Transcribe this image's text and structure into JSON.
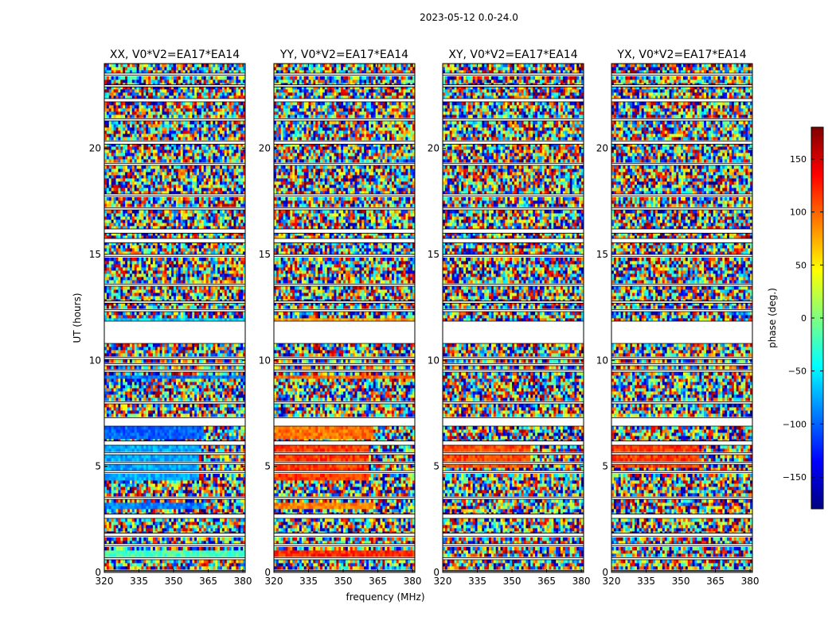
{
  "figure_title": "2023-05-12 0.0-24.0",
  "colors": {
    "background": "#ffffff",
    "axis": "#000000",
    "colormap": [
      "#00007f",
      "#0000ff",
      "#007fff",
      "#00ffff",
      "#7fff7f",
      "#ffff00",
      "#ff7f00",
      "#ff0000",
      "#7f0000"
    ]
  },
  "chart_data": {
    "type": "heatmap",
    "colormap": "jet",
    "xlabel": "frequency (MHz)",
    "ylabel": "UT (hours)",
    "xlim": [
      320,
      381
    ],
    "ylim": [
      0,
      24
    ],
    "xticks": [
      320,
      335,
      350,
      365,
      380
    ],
    "yticks": [
      0,
      5,
      10,
      15,
      20
    ],
    "colorbar": {
      "label": "phase (deg.)",
      "range": [
        -180,
        180
      ],
      "ticks": [
        -150,
        -100,
        -50,
        0,
        50,
        100,
        150
      ]
    },
    "flagged_ut_hours": [
      [
        0.05,
        0.1
      ],
      [
        0.6,
        0.7
      ],
      [
        1.25,
        1.35
      ],
      [
        1.7,
        1.85
      ],
      [
        2.55,
        2.75
      ],
      [
        3.45,
        3.55
      ],
      [
        4.7,
        4.8
      ],
      [
        5.1,
        5.2
      ],
      [
        5.55,
        5.65
      ],
      [
        6.0,
        6.2
      ],
      [
        6.9,
        7.3
      ],
      [
        7.95,
        8.05
      ],
      [
        9.45,
        9.55
      ],
      [
        9.75,
        9.85
      ],
      [
        10.05,
        10.15
      ],
      [
        10.8,
        11.85
      ],
      [
        12.3,
        12.4
      ],
      [
        12.7,
        12.8
      ],
      [
        13.5,
        13.6
      ],
      [
        14.9,
        15.0
      ],
      [
        15.55,
        15.75
      ],
      [
        16.0,
        16.2
      ],
      [
        17.1,
        17.2
      ],
      [
        17.75,
        17.85
      ],
      [
        19.2,
        19.3
      ],
      [
        20.2,
        20.35
      ],
      [
        21.3,
        21.4
      ],
      [
        22.2,
        22.35
      ],
      [
        22.9,
        23.0
      ],
      [
        23.45,
        23.55
      ]
    ],
    "panels": [
      {
        "title": "XX, V0*V2=EA17*EA14",
        "coherent_bands": [
          {
            "ut": [
              0.75,
              1.0
            ],
            "freq": [
              320,
              381
            ],
            "phase": -20
          },
          {
            "ut": [
              2.95,
              3.25
            ],
            "freq": [
              320,
              363
            ],
            "phase": -90
          },
          {
            "ut": [
              4.35,
              6.0
            ],
            "freq": [
              320,
              361
            ],
            "phase": -75
          },
          {
            "ut": [
              6.25,
              6.85
            ],
            "freq": [
              320,
              363
            ],
            "phase": -100
          },
          {
            "ut": [
              9.15,
              9.35
            ],
            "freq": [
              320,
              381
            ],
            "phase": -95
          },
          {
            "ut": [
              11.85,
              12.05
            ],
            "freq": [
              320,
              381
            ],
            "phase": -60
          }
        ]
      },
      {
        "title": "YY, V0*V2=EA17*EA14",
        "coherent_bands": [
          {
            "ut": [
              0.75,
              1.0
            ],
            "freq": [
              320,
              381
            ],
            "phase": 120
          },
          {
            "ut": [
              2.95,
              3.25
            ],
            "freq": [
              320,
              363
            ],
            "phase": 90
          },
          {
            "ut": [
              4.35,
              6.0
            ],
            "freq": [
              320,
              361
            ],
            "phase": 115
          },
          {
            "ut": [
              6.25,
              7.0
            ],
            "freq": [
              320,
              363
            ],
            "phase": 95
          },
          {
            "ut": [
              9.15,
              9.35
            ],
            "freq": [
              320,
              381
            ],
            "phase": 100
          },
          {
            "ut": [
              11.85,
              12.05
            ],
            "freq": [
              320,
              381
            ],
            "phase": 80
          }
        ]
      },
      {
        "title": "XY, V0*V2=EA17*EA14",
        "coherent_bands": [
          {
            "ut": [
              4.9,
              6.0
            ],
            "freq": [
              320,
              358
            ],
            "phase": 110
          }
        ]
      },
      {
        "title": "YX, V0*V2=EA17*EA14",
        "coherent_bands": [
          {
            "ut": [
              4.9,
              6.0
            ],
            "freq": [
              320,
              358
            ],
            "phase": 115
          }
        ]
      }
    ]
  }
}
